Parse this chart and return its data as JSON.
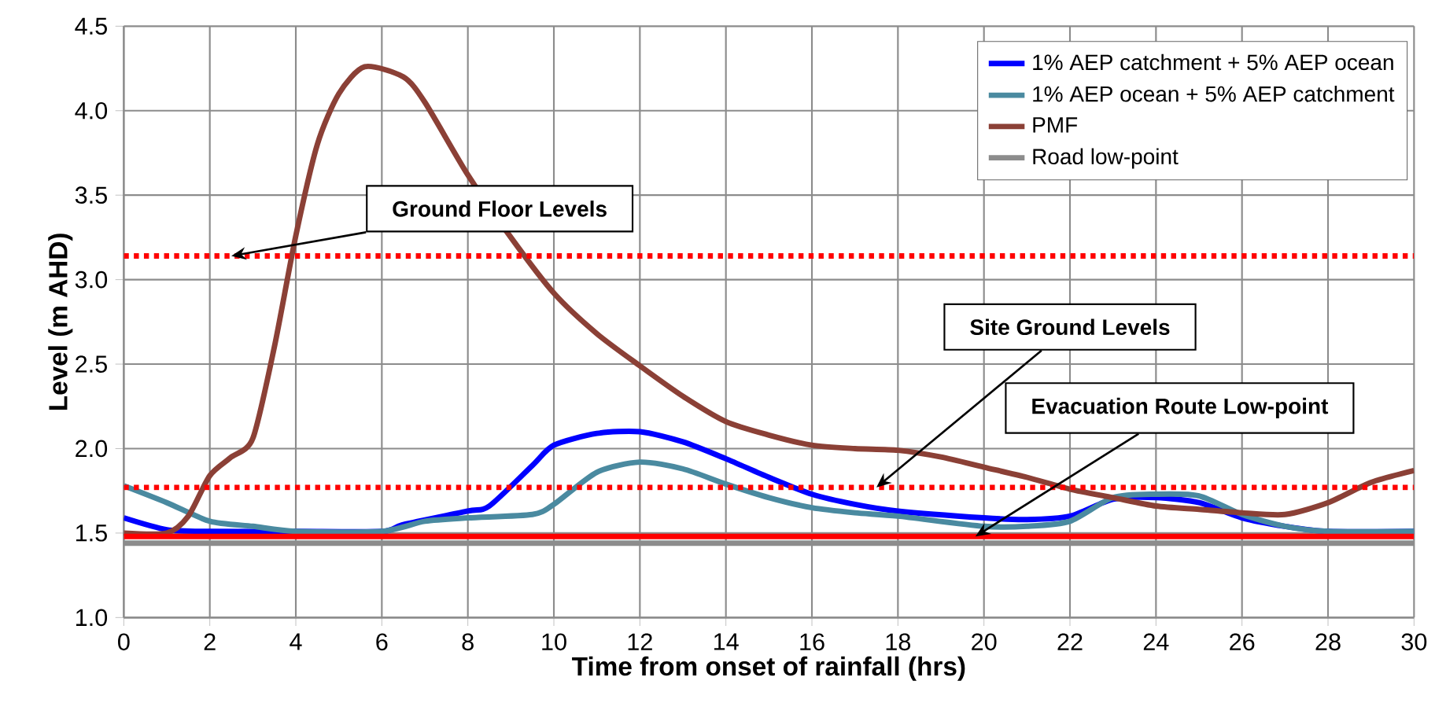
{
  "chart_data": {
    "type": "line",
    "xlabel": "Time from onset of rainfall (hrs)",
    "ylabel": "Level (m AHD)",
    "xlim": [
      0,
      30
    ],
    "xticks": [
      0,
      2,
      4,
      6,
      8,
      10,
      12,
      14,
      16,
      18,
      20,
      22,
      24,
      26,
      28,
      30
    ],
    "ylim": [
      1.0,
      4.5
    ],
    "yticks": [
      {
        "value": 1.0,
        "label": "1.0"
      },
      {
        "value": 1.5,
        "label": "1.5"
      },
      {
        "value": 2.0,
        "label": "2.0"
      },
      {
        "value": 2.5,
        "label": "2.5"
      },
      {
        "value": 3.0,
        "label": "3.0"
      },
      {
        "value": 3.5,
        "label": "3.5"
      },
      {
        "value": 4.0,
        "label": "4.0"
      },
      {
        "value": 4.5,
        "label": "4.5"
      }
    ],
    "grid": true,
    "legend": "top right",
    "series": [
      {
        "name": "1% AEP catchment + 5% AEP ocean",
        "color": "#0000ff",
        "x": [
          0,
          1,
          2,
          4,
          6,
          6.5,
          8,
          8.5,
          9.5,
          10,
          11,
          12,
          13,
          14,
          15,
          16,
          17,
          18,
          20,
          21,
          22,
          23,
          24,
          25,
          26,
          27,
          28,
          30
        ],
        "values": [
          1.59,
          1.52,
          1.51,
          1.51,
          1.51,
          1.55,
          1.63,
          1.66,
          1.9,
          2.02,
          2.09,
          2.1,
          2.04,
          1.94,
          1.83,
          1.73,
          1.67,
          1.63,
          1.59,
          1.58,
          1.6,
          1.7,
          1.71,
          1.68,
          1.59,
          1.54,
          1.51,
          1.51
        ]
      },
      {
        "name": "1% AEP ocean + 5% AEP catchment",
        "color": "#4a8aa0",
        "x": [
          0,
          1,
          2,
          3,
          4,
          6,
          7,
          8,
          9.5,
          10,
          11,
          12,
          13,
          14,
          15,
          16,
          17,
          18,
          20,
          21,
          22,
          23,
          24,
          25,
          26,
          27,
          28,
          30
        ],
        "values": [
          1.78,
          1.68,
          1.57,
          1.54,
          1.51,
          1.51,
          1.57,
          1.59,
          1.61,
          1.67,
          1.86,
          1.92,
          1.88,
          1.79,
          1.71,
          1.65,
          1.62,
          1.6,
          1.54,
          1.54,
          1.57,
          1.71,
          1.73,
          1.72,
          1.61,
          1.54,
          1.51,
          1.51
        ]
      },
      {
        "name": "PMF",
        "color": "#8b4036",
        "x": [
          0,
          1,
          1.5,
          2,
          2.5,
          3,
          3.5,
          4,
          4.5,
          5,
          5.6,
          6.5,
          7,
          8,
          9,
          10,
          11,
          12,
          13,
          14,
          15,
          16,
          17,
          18,
          19,
          20,
          21,
          22,
          23,
          24,
          25,
          26,
          27,
          28,
          29,
          30
        ],
        "values": [
          1.5,
          1.5,
          1.6,
          1.84,
          1.95,
          2.06,
          2.6,
          3.26,
          3.8,
          4.1,
          4.26,
          4.2,
          4.05,
          3.62,
          3.25,
          2.92,
          2.68,
          2.49,
          2.31,
          2.16,
          2.08,
          2.02,
          2.0,
          1.99,
          1.95,
          1.89,
          1.83,
          1.76,
          1.71,
          1.66,
          1.64,
          1.62,
          1.61,
          1.68,
          1.8,
          1.87
        ]
      },
      {
        "name": "Road low-point",
        "color": "#8c8c8c",
        "x": [
          0,
          30
        ],
        "values": [
          1.44,
          1.44
        ]
      }
    ],
    "ref_lines": [
      {
        "axis": "y",
        "value": 3.14,
        "label": "Ground Floor Levels",
        "color": "#ff0000",
        "line_style": "dotted"
      },
      {
        "axis": "y",
        "value": 1.77,
        "label": "Site Ground Levels",
        "color": "#ff0000",
        "line_style": "dotted"
      },
      {
        "axis": "y",
        "value": 1.48,
        "label": "Evacuation Route Low-point",
        "color": "#ff0000",
        "line_style": "solid"
      }
    ]
  }
}
